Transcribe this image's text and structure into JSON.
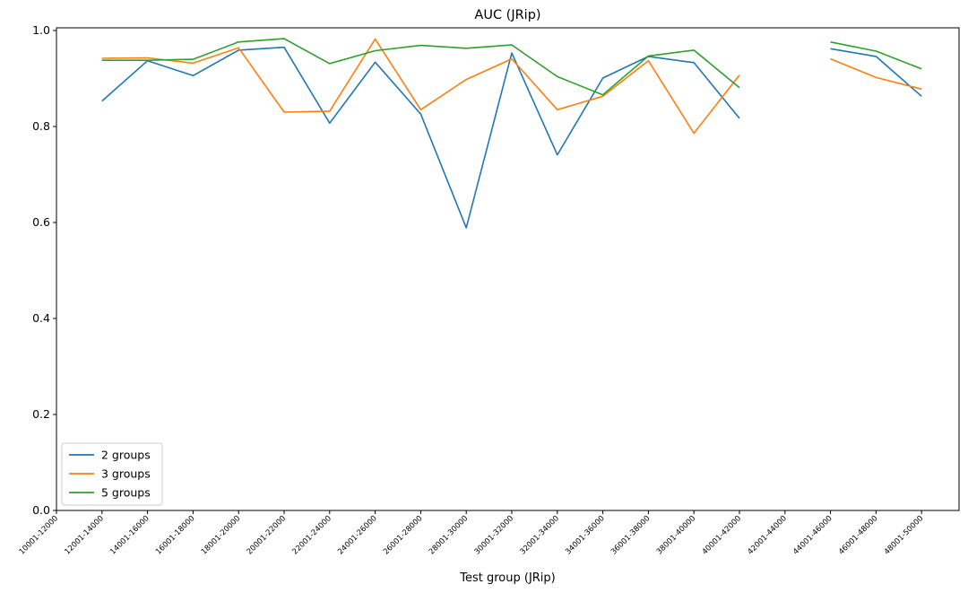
{
  "chart_data": {
    "type": "line",
    "title": "AUC (JRip)",
    "xlabel": "Test group (JRip)",
    "ylabel": "",
    "ylim": [
      0.0,
      1.0
    ],
    "yticks": [
      "0.0",
      "0.2",
      "0.4",
      "0.6",
      "0.8",
      "1.0"
    ],
    "categories": [
      "10001-12000",
      "12001-14000",
      "14001-16000",
      "16001-18000",
      "18001-20000",
      "20001-22000",
      "22001-24000",
      "24001-26000",
      "26001-28000",
      "28001-30000",
      "30001-32000",
      "32001-34000",
      "34001-36000",
      "36001-38000",
      "38001-40000",
      "40001-42000",
      "42001-44000",
      "44001-46000",
      "46001-48000",
      "48001-50000"
    ],
    "grid": false,
    "legend_position": "lower-left",
    "series": [
      {
        "name": "2 groups",
        "color": "#1f77b4",
        "values": [
          null,
          0.853,
          0.937,
          0.906,
          0.959,
          0.965,
          0.807,
          0.934,
          0.826,
          0.589,
          0.953,
          0.741,
          0.901,
          0.946,
          0.933,
          0.817,
          null,
          0.962,
          0.946,
          0.863
        ]
      },
      {
        "name": "3 groups",
        "color": "#ff7f0e",
        "values": [
          null,
          0.942,
          0.943,
          0.932,
          0.964,
          0.83,
          0.832,
          0.982,
          0.835,
          0.898,
          0.941,
          0.835,
          0.863,
          0.937,
          0.786,
          0.907,
          null,
          0.941,
          0.902,
          0.878
        ]
      },
      {
        "name": "5 groups",
        "color": "#2ca02c",
        "values": [
          null,
          0.938,
          0.938,
          0.94,
          0.976,
          0.983,
          0.931,
          0.958,
          0.969,
          0.963,
          0.97,
          0.904,
          0.866,
          0.947,
          0.959,
          0.881,
          null,
          0.976,
          0.957,
          0.92
        ]
      }
    ]
  }
}
